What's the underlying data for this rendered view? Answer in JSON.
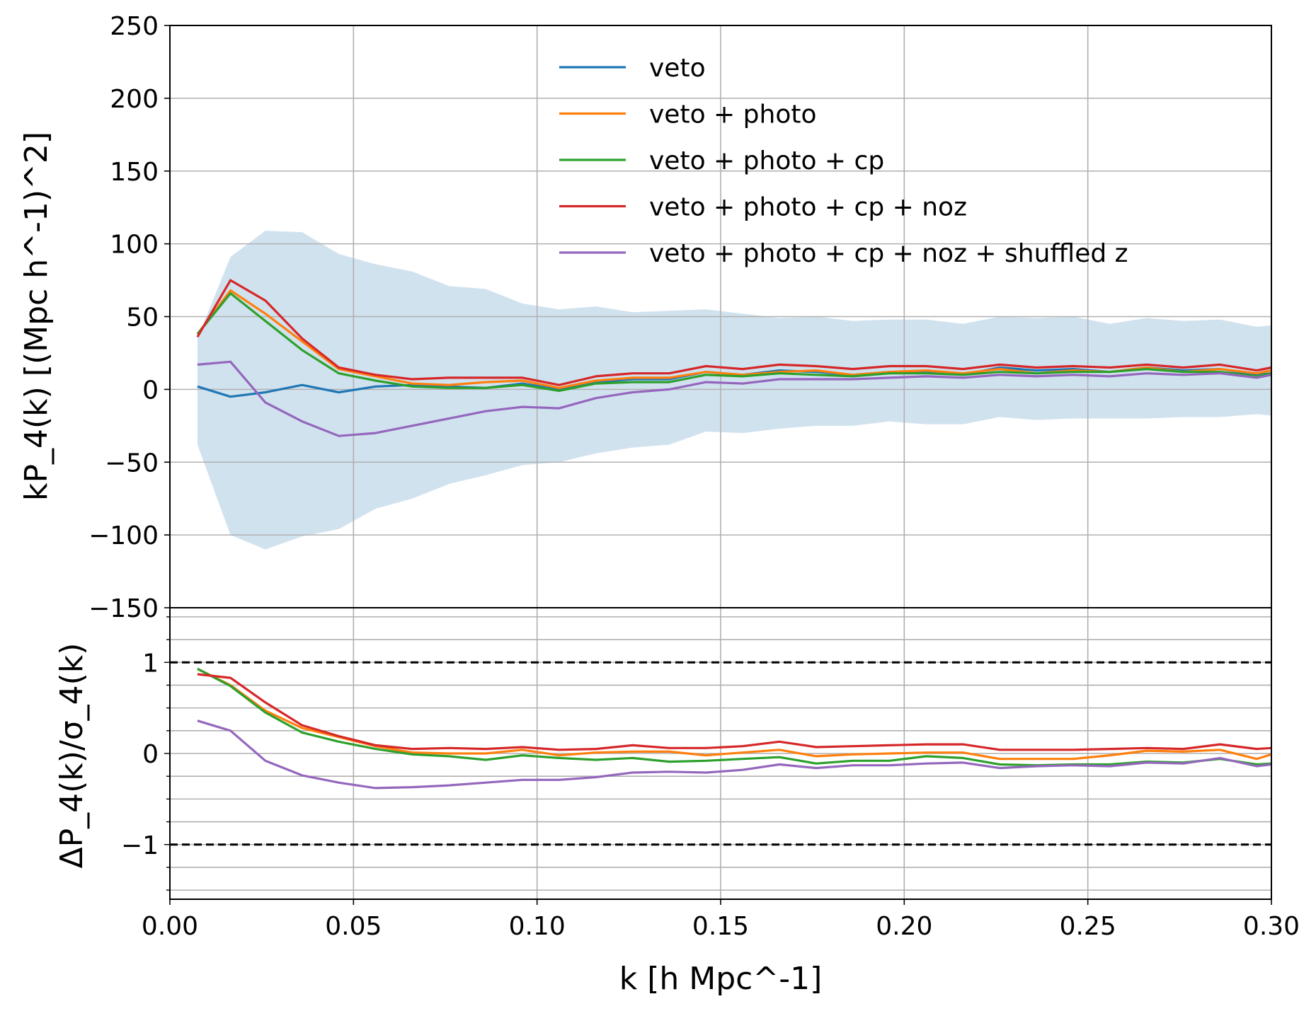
{
  "chart_data": [
    {
      "panel": "top",
      "type": "line",
      "ylabel": "kP_4(k) [(Mpc h^-1)^2]",
      "xlim": [
        0.0,
        0.3
      ],
      "ylim": [
        -150,
        250
      ],
      "grid": true,
      "x_ticks": [
        "0.00",
        "0.05",
        "0.10",
        "0.15",
        "0.20",
        "0.25",
        "0.30"
      ],
      "y_ticks": [
        {
          "value": 250,
          "label": "250"
        },
        {
          "value": 200,
          "label": "200"
        },
        {
          "value": 150,
          "label": "150"
        },
        {
          "value": 100,
          "label": "100"
        },
        {
          "value": 50,
          "label": "50"
        },
        {
          "value": 0,
          "label": "0"
        },
        {
          "value": -50,
          "label": "−50"
        },
        {
          "value": -100,
          "label": "−100"
        },
        {
          "value": -150,
          "label": "−150"
        }
      ],
      "legend_position": "top-right",
      "x": [
        0.0075,
        0.0165,
        0.026,
        0.036,
        0.046,
        0.056,
        0.066,
        0.076,
        0.086,
        0.096,
        0.106,
        0.116,
        0.126,
        0.136,
        0.146,
        0.156,
        0.166,
        0.176,
        0.186,
        0.196,
        0.206,
        0.216,
        0.226,
        0.236,
        0.246,
        0.256,
        0.266,
        0.276,
        0.286,
        0.296,
        0.3
      ],
      "band": {
        "color": "#a6c8e0",
        "upper": [
          35,
          91,
          109,
          108,
          93,
          86,
          81,
          71,
          69,
          59,
          55,
          57,
          53,
          54,
          55,
          52,
          49,
          50,
          47,
          48,
          48,
          45,
          50,
          49,
          50,
          45,
          49,
          47,
          48,
          43,
          44
        ],
        "lower": [
          -38,
          -100,
          -110,
          -101,
          -96,
          -82,
          -75,
          -65,
          -59,
          -52,
          -50,
          -44,
          -40,
          -38,
          -29,
          -30,
          -27,
          -25,
          -25,
          -22,
          -24,
          -24,
          -19,
          -21,
          -20,
          -20,
          -20,
          -19,
          -19,
          -17,
          -18
        ]
      },
      "series": [
        {
          "name": "veto",
          "color": "#1f77b4",
          "values": [
            2,
            -5,
            -2,
            3,
            -2,
            2,
            3,
            2,
            1,
            4,
            0,
            5,
            7,
            7,
            12,
            10,
            13,
            12,
            10,
            12,
            12,
            10,
            15,
            13,
            14,
            12,
            15,
            13,
            14,
            10,
            11
          ]
        },
        {
          "name": "veto + photo",
          "color": "#ff7f0e",
          "values": [
            38,
            68,
            52,
            33,
            14,
            9,
            4,
            3,
            5,
            6,
            1,
            6,
            8,
            8,
            12,
            10,
            12,
            13,
            10,
            12,
            13,
            11,
            14,
            11,
            13,
            12,
            15,
            12,
            14,
            11,
            13
          ]
        },
        {
          "name": "veto + photo + cp",
          "color": "#2ca02c",
          "values": [
            38,
            66,
            47,
            27,
            11,
            6,
            2,
            1,
            1,
            3,
            -1,
            4,
            5,
            5,
            10,
            9,
            11,
            10,
            9,
            11,
            11,
            10,
            12,
            11,
            12,
            12,
            14,
            12,
            12,
            9,
            11
          ]
        },
        {
          "name": "veto + photo + cp + noz",
          "color": "#d62728",
          "values": [
            36,
            75,
            61,
            35,
            15,
            10,
            7,
            8,
            8,
            8,
            3,
            9,
            11,
            11,
            16,
            14,
            17,
            16,
            14,
            16,
            16,
            14,
            17,
            15,
            16,
            15,
            17,
            15,
            17,
            13,
            15
          ]
        },
        {
          "name": "veto + photo + cp + noz + shuffled z",
          "color": "#9467bd",
          "values": [
            17,
            19,
            -9,
            -22,
            -32,
            -30,
            -25,
            -20,
            -15,
            -12,
            -13,
            -6,
            -2,
            0,
            5,
            4,
            7,
            7,
            7,
            8,
            9,
            8,
            10,
            9,
            10,
            9,
            11,
            10,
            11,
            8,
            10
          ]
        }
      ]
    },
    {
      "panel": "bottom",
      "type": "line",
      "xlabel": "k [h Mpc^-1]",
      "ylabel": "ΔP_4(k)/σ_4(k)",
      "xlim": [
        0.0,
        0.3
      ],
      "ylim": [
        -1.6,
        1.6
      ],
      "grid": true,
      "y_ticks": [
        {
          "value": 1,
          "label": "1"
        },
        {
          "value": 0,
          "label": "0"
        },
        {
          "value": -1,
          "label": "−1"
        }
      ],
      "reference_lines": [
        1,
        -1
      ],
      "x": [
        0.0075,
        0.0165,
        0.026,
        0.036,
        0.046,
        0.056,
        0.066,
        0.076,
        0.086,
        0.096,
        0.106,
        0.116,
        0.126,
        0.136,
        0.146,
        0.156,
        0.166,
        0.176,
        0.186,
        0.196,
        0.206,
        0.216,
        0.226,
        0.236,
        0.246,
        0.256,
        0.266,
        0.276,
        0.286,
        0.296,
        0.3
      ],
      "series": [
        {
          "name": "veto + photo",
          "color": "#ff7f0e",
          "values": [
            0.93,
            0.75,
            0.47,
            0.28,
            0.18,
            0.08,
            0.01,
            0.0,
            0.0,
            0.04,
            -0.02,
            0.01,
            0.02,
            0.02,
            -0.02,
            0.01,
            0.04,
            -0.03,
            -0.01,
            0.0,
            0.01,
            0.01,
            -0.06,
            -0.06,
            -0.06,
            -0.02,
            0.03,
            0.02,
            0.04,
            -0.06,
            -0.01
          ]
        },
        {
          "name": "veto + photo + cp",
          "color": "#2ca02c",
          "values": [
            0.93,
            0.74,
            0.45,
            0.23,
            0.13,
            0.05,
            -0.01,
            -0.03,
            -0.07,
            -0.02,
            -0.05,
            -0.07,
            -0.05,
            -0.09,
            -0.08,
            -0.06,
            -0.04,
            -0.11,
            -0.08,
            -0.08,
            -0.03,
            -0.05,
            -0.12,
            -0.13,
            -0.12,
            -0.12,
            -0.09,
            -0.1,
            -0.06,
            -0.12,
            -0.11
          ]
        },
        {
          "name": "veto + photo + cp + noz",
          "color": "#d62728",
          "values": [
            0.87,
            0.83,
            0.56,
            0.31,
            0.19,
            0.09,
            0.05,
            0.06,
            0.05,
            0.07,
            0.04,
            0.05,
            0.09,
            0.06,
            0.06,
            0.08,
            0.13,
            0.07,
            0.08,
            0.09,
            0.1,
            0.1,
            0.04,
            0.04,
            0.04,
            0.05,
            0.06,
            0.05,
            0.1,
            0.05,
            0.06
          ]
        },
        {
          "name": "veto + photo + cp + noz + shuffled z",
          "color": "#9467bd",
          "values": [
            0.36,
            0.25,
            -0.08,
            -0.24,
            -0.32,
            -0.38,
            -0.37,
            -0.35,
            -0.32,
            -0.29,
            -0.29,
            -0.26,
            -0.21,
            -0.2,
            -0.21,
            -0.18,
            -0.12,
            -0.16,
            -0.13,
            -0.13,
            -0.11,
            -0.1,
            -0.16,
            -0.14,
            -0.13,
            -0.14,
            -0.1,
            -0.11,
            -0.05,
            -0.14,
            -0.12
          ]
        }
      ]
    }
  ]
}
